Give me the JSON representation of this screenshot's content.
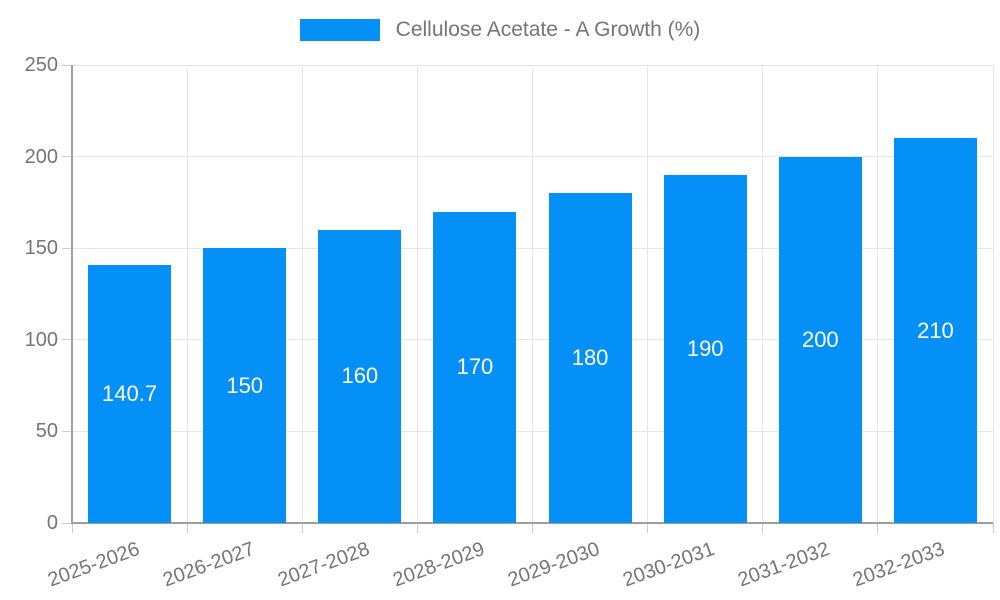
{
  "legend": {
    "label": "Cellulose Acetate - A Growth (%)",
    "swatch_color": "#0590f8"
  },
  "chart_data": {
    "type": "bar",
    "title": "Cellulose Acetate - A Growth (%)",
    "categories": [
      "2025-2026",
      "2026-2027",
      "2027-2028",
      "2028-2029",
      "2029-2030",
      "2030-2031",
      "2031-2032",
      "2032-2033"
    ],
    "series": [
      {
        "name": "Cellulose Acetate - A Growth (%)",
        "values": [
          140.7,
          150,
          160,
          170,
          180,
          190,
          200,
          210
        ]
      }
    ],
    "bar_labels": [
      "140.7",
      "150",
      "160",
      "170",
      "180",
      "190",
      "200",
      "210"
    ],
    "xlabel": "",
    "ylabel": "",
    "ylim": [
      0,
      250
    ],
    "yticks": [
      0,
      50,
      100,
      150,
      200,
      250
    ],
    "grid": true,
    "legend_position": "top",
    "colors": {
      "bar": "#0590f8",
      "value_label": "#ffffff",
      "axis_text": "#757575",
      "grid_line": "#e6e6e6",
      "axis_line": "#9e9e9e",
      "tick_line": "#cccccc"
    }
  }
}
